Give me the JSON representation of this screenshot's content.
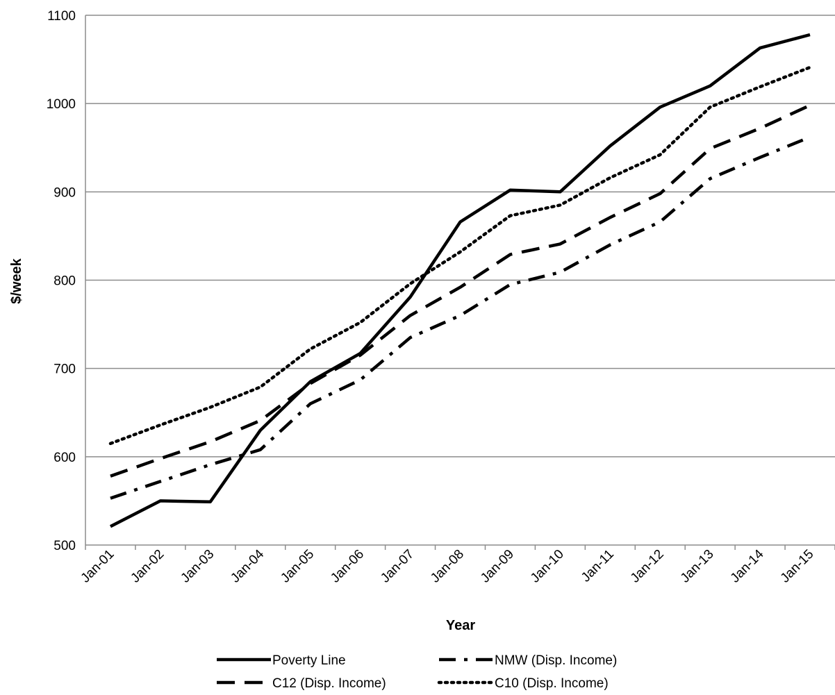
{
  "chart_data": {
    "type": "line",
    "title": "",
    "xlabel": "Year",
    "ylabel": "$/week",
    "ylim": [
      500,
      1100
    ],
    "yticks": [
      500,
      600,
      700,
      800,
      900,
      1000,
      1100
    ],
    "grid": "horizontal",
    "legend_position": "bottom",
    "categories": [
      "Jan-01",
      "Jan-02",
      "Jan-03",
      "Jan-04",
      "Jan-05",
      "Jan-06",
      "Jan-07",
      "Jan-08",
      "Jan-09",
      "Jan-10",
      "Jan-11",
      "Jan-12",
      "Jan-13",
      "Jan-14",
      "Jan-15"
    ],
    "series": [
      {
        "name": "Poverty Line",
        "style": "solid",
        "color": "#000000",
        "values": [
          521,
          550,
          549,
          630,
          685,
          717,
          781,
          866,
          902,
          900,
          952,
          996,
          1020,
          1063,
          1078
        ]
      },
      {
        "name": "NMW (Disp. Income)",
        "style": "dashdot",
        "color": "#000000",
        "values": [
          553,
          572,
          591,
          608,
          660,
          687,
          735,
          760,
          795,
          809,
          840,
          866,
          915,
          939,
          962
        ]
      },
      {
        "name": "C12 (Disp. Income)",
        "style": "dashed",
        "color": "#000000",
        "values": [
          578,
          598,
          617,
          641,
          683,
          715,
          760,
          792,
          829,
          841,
          871,
          898,
          949,
          972,
          998
        ]
      },
      {
        "name": "C10 (Disp. Income)",
        "style": "dotted",
        "color": "#000000",
        "values": [
          615,
          636,
          656,
          679,
          722,
          752,
          796,
          832,
          873,
          885,
          916,
          942,
          996,
          1019,
          1041
        ]
      }
    ]
  }
}
